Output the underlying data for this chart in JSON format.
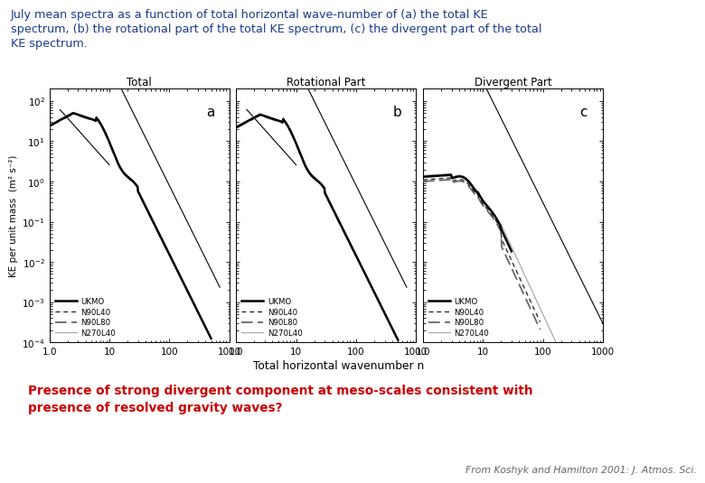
{
  "title_line1": "July mean spectra as a function of total horizontal wave-number of (a) the total KE",
  "title_line2": "spectrum, (b) the rotational part of the total KE spectrum, (c) the divergent part of the total",
  "title_line3": "KE spectrum.",
  "title_color": "#1A3A8C",
  "subtitle_line1": "Presence of strong divergent component at meso-scales consistent with",
  "subtitle_line2": "presence of resolved gravity waves?",
  "subtitle_color": "#CC0000",
  "footer": "From Koshyk and Hamilton 2001: J. Atmos. Sci.",
  "footer_color": "#666666",
  "xlabel": "Total horizontal wavenumber n",
  "ylabel": "KE per unit mass  (m² s⁻²)",
  "panel_titles": [
    "Total",
    "Rotational Part",
    "Divergent Part"
  ],
  "panel_labels": [
    "a",
    "b",
    "c"
  ],
  "xlim": [
    1.0,
    1000
  ],
  "ylim_ab": [
    0.0001,
    200.0
  ],
  "ylim_c": [
    0.0001,
    200.0
  ],
  "legend_labels": [
    "UKMO",
    "N90L40",
    "N90L80",
    "N270L40"
  ]
}
